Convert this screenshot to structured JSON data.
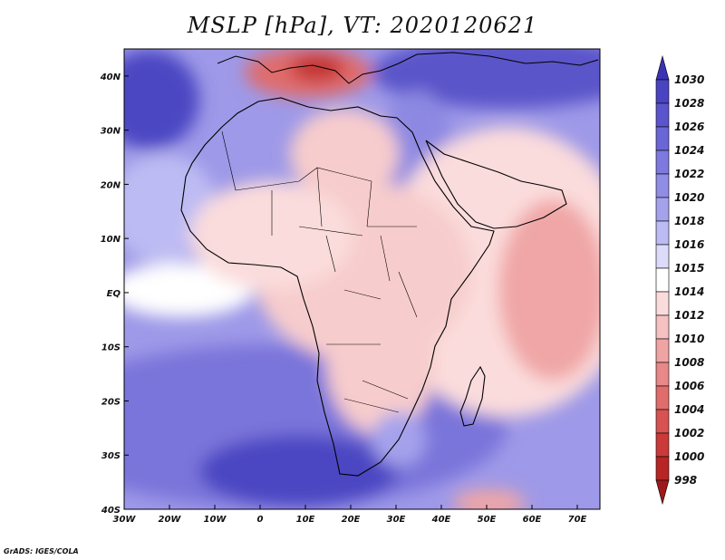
{
  "title": "MSLP [hPa], VT: 2020120621",
  "credit": "GrADS: IGES/COLA",
  "map": {
    "lat_range": [
      -40,
      45
    ],
    "lon_range": [
      -30,
      75
    ],
    "lat_ticks": [
      {
        "value": 40,
        "label": "40N"
      },
      {
        "value": 30,
        "label": "30N"
      },
      {
        "value": 20,
        "label": "20N"
      },
      {
        "value": 10,
        "label": "10N"
      },
      {
        "value": 0,
        "label": "EQ"
      },
      {
        "value": -10,
        "label": "10S"
      },
      {
        "value": -20,
        "label": "20S"
      },
      {
        "value": -30,
        "label": "30S"
      },
      {
        "value": -40,
        "label": "40S"
      }
    ],
    "lon_ticks": [
      {
        "value": -30,
        "label": "30W"
      },
      {
        "value": -20,
        "label": "20W"
      },
      {
        "value": -10,
        "label": "10W"
      },
      {
        "value": 0,
        "label": "0"
      },
      {
        "value": 10,
        "label": "10E"
      },
      {
        "value": 20,
        "label": "20E"
      },
      {
        "value": 30,
        "label": "30E"
      },
      {
        "value": 40,
        "label": "40E"
      },
      {
        "value": 50,
        "label": "50E"
      },
      {
        "value": 60,
        "label": "60E"
      },
      {
        "value": 70,
        "label": "70E"
      }
    ]
  },
  "colorbar": {
    "levels": [
      "1030",
      "1028",
      "1026",
      "1024",
      "1022",
      "1020",
      "1018",
      "1016",
      "1015",
      "1014",
      "1012",
      "1010",
      "1008",
      "1006",
      "1004",
      "1002",
      "1000",
      "998"
    ],
    "colors": [
      "#3a33b5",
      "#4a44c2",
      "#5b55cd",
      "#6b66d6",
      "#7d79de",
      "#908de5",
      "#a5a2ec",
      "#bdbbf3",
      "#dcdbf9",
      "#ffffff",
      "#fbdcdc",
      "#f5c1c1",
      "#efa4a4",
      "#e88888",
      "#e06c6c",
      "#d85252",
      "#cc3939",
      "#b82525",
      "#9e1a1a"
    ]
  }
}
